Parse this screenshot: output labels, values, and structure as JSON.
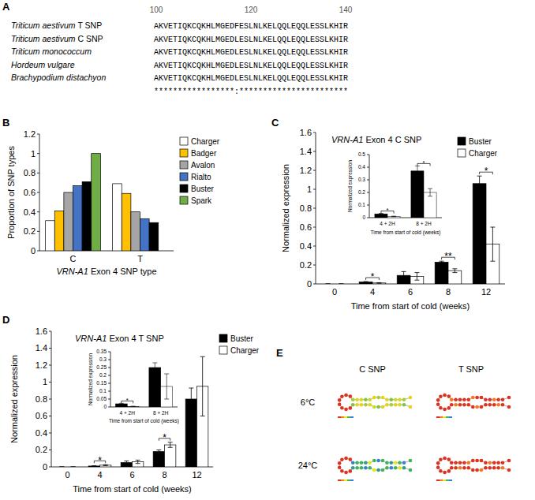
{
  "panel_a": {
    "label": "A",
    "ruler": {
      "start": 100,
      "ticks": [
        100,
        120,
        140
      ]
    },
    "rows": [
      {
        "name": "Triticum aestivum T SNP",
        "sequence": "AKVETIQKCQKHLMGEDFESLNLKELQQLEQQLESSLKHIR"
      },
      {
        "name": "Triticum aestivum C SNP",
        "sequence": "AKVETIQKCQKHLMGEDLESLNLKELQQLEQQLESSLKHIR"
      },
      {
        "name": "Triticum monococcum",
        "sequence": "AKVETIQKCQKHLMGEDLESLNLKELQQLEQQLESSLKHIR"
      },
      {
        "name": "Hordeum vulgare",
        "sequence": "AKVETIQKCQKHLMGEDLESLNLKELQQLEQQLESSLKHIR"
      },
      {
        "name": "Brachypodium distachyon",
        "sequence": "AKVETIQKCQKHLMGEDLESLNLKELQQLEQQLESSLKHIR"
      }
    ],
    "consensus": "*****************:***********************"
  },
  "chart_data": [
    {
      "panel": "B",
      "type": "bar",
      "categories": [
        "C",
        "T"
      ],
      "x_label": "VRN-A1 Exon 4 SNP type",
      "y_label": "Proportion of SNP types",
      "ylim": [
        0,
        1.2
      ],
      "yticks": [
        0,
        0.2,
        0.4,
        0.6,
        0.8,
        1,
        1.2
      ],
      "legend": "right",
      "series": [
        {
          "name": "Charger",
          "color": "#ffffff",
          "values": [
            0.31,
            0.69
          ]
        },
        {
          "name": "Badger",
          "color": "#ffc000",
          "values": [
            0.41,
            0.59
          ]
        },
        {
          "name": "Avalon",
          "color": "#a5a5a5",
          "values": [
            0.6,
            0.4
          ]
        },
        {
          "name": "Rialto",
          "color": "#4472c4",
          "values": [
            0.67,
            0.33
          ]
        },
        {
          "name": "Buster",
          "color": "#000000",
          "values": [
            0.71,
            0.29
          ]
        },
        {
          "name": "Spark",
          "color": "#70ad47",
          "values": [
            1,
            0
          ]
        }
      ]
    },
    {
      "panel": "C",
      "type": "bar",
      "title": "VRN-A1 Exon 4 C SNP",
      "categories": [
        "0",
        "4",
        "6",
        "8",
        "12"
      ],
      "x_label": "Time from start of cold (weeks)",
      "y_label": "Normalized expression",
      "ylim": [
        0,
        1.6
      ],
      "yticks": [
        0,
        0.2,
        0.4,
        0.6,
        0.8,
        1,
        1.2,
        1.4,
        1.6
      ],
      "legend": "upper right",
      "series": [
        {
          "name": "Buster",
          "color": "#000000",
          "values": [
            0,
            0.02,
            0.09,
            0.23,
            1.06
          ],
          "errors": [
            0,
            0.005,
            0.04,
            0.01,
            0.08
          ]
        },
        {
          "name": "Charger",
          "color": "#ffffff",
          "values": [
            0,
            0.01,
            0.08,
            0.14,
            0.42
          ],
          "errors": [
            0,
            0.003,
            0.04,
            0.02,
            0.18
          ]
        }
      ],
      "annotations": [
        {
          "category": "4",
          "text": "*"
        },
        {
          "category": "8",
          "text": "**"
        },
        {
          "category": "12",
          "text": "*"
        }
      ],
      "inset": {
        "type": "bar",
        "categories": [
          "4 + 2H",
          "8 + 2H"
        ],
        "x_label": "Time from start of cold (weeks)",
        "y_label": "Normalized expression",
        "ylim": [
          0,
          0.5
        ],
        "yticks": [
          0,
          0.1,
          0.2,
          0.3,
          0.4,
          0.5
        ],
        "series": [
          {
            "color": "#000000",
            "values": [
              0.03,
              0.37
            ],
            "errors": [
              0.004,
              0.04
            ]
          },
          {
            "color": "#ffffff",
            "values": [
              0.01,
              0.2
            ],
            "errors": [
              0.002,
              0.03
            ]
          }
        ],
        "annotations": [
          {
            "category": "4 + 2H",
            "text": "*"
          },
          {
            "category": "8 + 2H",
            "text": "*"
          }
        ]
      }
    },
    {
      "panel": "D",
      "type": "bar",
      "title": "VRN-A1 Exon 4 T SNP",
      "categories": [
        "0",
        "4",
        "6",
        "8",
        "12"
      ],
      "x_label": "Time from start of cold (weeks)",
      "y_label": "Normalized expression",
      "ylim": [
        0,
        1.6
      ],
      "yticks": [
        0,
        0.2,
        0.4,
        0.6,
        0.8,
        1,
        1.2,
        1.4,
        1.6
      ],
      "legend": "right",
      "series": [
        {
          "name": "Buster",
          "color": "#000000",
          "values": [
            0,
            0.01,
            0.05,
            0.18,
            0.8
          ],
          "errors": [
            0,
            0.003,
            0.02,
            0.02,
            0.13
          ]
        },
        {
          "name": "Charger",
          "color": "#ffffff",
          "values": [
            0,
            0.02,
            0.06,
            0.26,
            0.95
          ],
          "errors": [
            0,
            0.005,
            0.02,
            0.03,
            0.35
          ]
        }
      ],
      "annotations": [
        {
          "category": "4",
          "text": "*"
        },
        {
          "category": "8",
          "text": "*"
        }
      ],
      "inset": {
        "type": "bar",
        "categories": [
          "4 + 2H",
          "8 + 2H"
        ],
        "x_label": "Time from start of cold (weeks)",
        "y_label": "Normalized expression",
        "ylim": [
          0,
          0.35
        ],
        "yticks": [
          0,
          0.05,
          0.1,
          0.15,
          0.2,
          0.25,
          0.3,
          0.35
        ],
        "series": [
          {
            "color": "#000000",
            "values": [
              0.02,
              0.25
            ],
            "errors": [
              0.003,
              0.03
            ]
          },
          {
            "color": "#ffffff",
            "values": [
              0.003,
              0.13
            ],
            "errors": [
              0.002,
              0.08
            ]
          }
        ],
        "annotations": [
          {
            "category": "4 + 2H",
            "text": "*"
          }
        ]
      }
    }
  ],
  "panel_e": {
    "label": "E",
    "columns": [
      "C SNP",
      "T SNP"
    ],
    "rows": [
      "6°C",
      "24°C"
    ]
  }
}
